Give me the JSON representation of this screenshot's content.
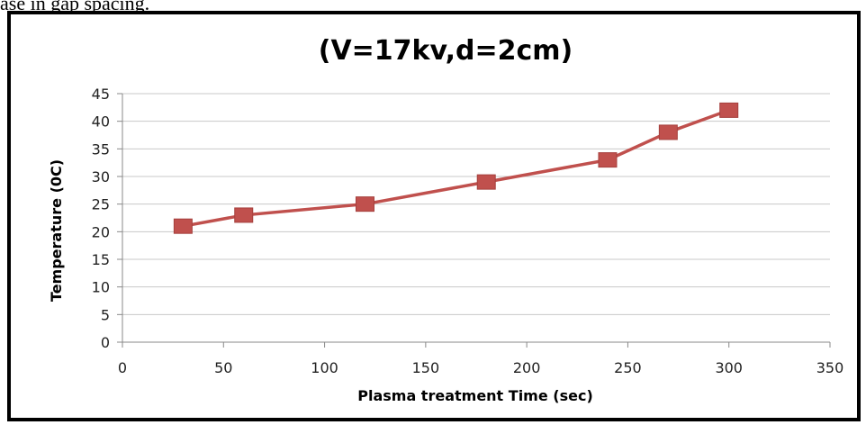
{
  "page_caption": "ase in gap spacing.",
  "chart_data": {
    "type": "line",
    "title": "(V=17kv,d=2cm)",
    "xlabel": "Plasma treatment Time (sec)",
    "ylabel": "Temperature (0C)",
    "xlim": [
      0,
      350
    ],
    "ylim": [
      0,
      45
    ],
    "xticks": [
      0,
      50,
      100,
      150,
      200,
      250,
      300,
      350
    ],
    "yticks": [
      0,
      5,
      10,
      15,
      20,
      25,
      30,
      35,
      40,
      45
    ],
    "grid": true,
    "series": [
      {
        "color": "#c0504d",
        "marker": "square",
        "x": [
          30,
          60,
          120,
          180,
          240,
          270,
          300
        ],
        "y": [
          21,
          23,
          25,
          29,
          33,
          38,
          42
        ]
      }
    ]
  }
}
